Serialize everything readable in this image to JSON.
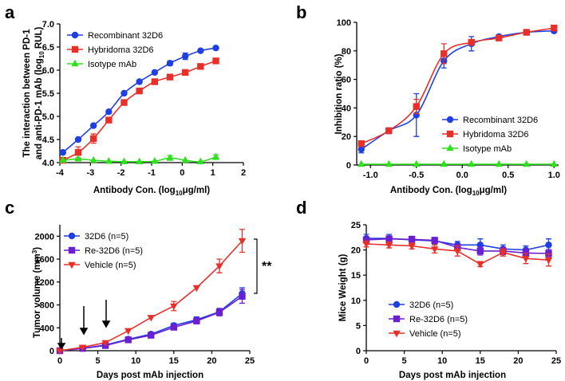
{
  "chart_data": [
    {
      "panel": "a",
      "type": "line",
      "xlabel": "Antibody Con. (log10 μg/ml)",
      "ylabel": "The interaction between PD-1 and anti-PD-1 mAb (log10 RUL)",
      "xlim": [
        -4,
        2
      ],
      "ylim": [
        4.0,
        7.0
      ],
      "xticks": [
        -4,
        -3,
        -2,
        -1,
        0,
        1,
        2
      ],
      "yticks": [
        4.0,
        4.5,
        5.0,
        5.5,
        6.0,
        6.5,
        7.0
      ],
      "ytick_labels": [
        "4.0",
        "4.5",
        "5.0",
        "5.5",
        "6.0",
        "6.5",
        "7.0"
      ],
      "legend_position": "top-left",
      "series": [
        {
          "name": "Recombinant 32D6",
          "color": "#1f3fe0",
          "marker": "circle",
          "x": [
            -3.9,
            -3.4,
            -2.9,
            -2.4,
            -1.9,
            -1.4,
            -0.9,
            -0.4,
            0.1,
            0.6,
            1.1
          ],
          "y": [
            4.22,
            4.5,
            4.8,
            5.1,
            5.5,
            5.75,
            5.95,
            6.15,
            6.3,
            6.42,
            6.48
          ],
          "err": [
            0,
            0,
            0,
            0,
            0,
            0,
            0,
            0.05,
            0.07,
            0,
            0
          ]
        },
        {
          "name": "Hybridoma 32D6",
          "color": "#e8302a",
          "marker": "square",
          "x": [
            -3.9,
            -3.4,
            -2.9,
            -2.4,
            -1.9,
            -1.4,
            -0.9,
            -0.4,
            0.1,
            0.6,
            1.1
          ],
          "y": [
            4.05,
            4.22,
            4.52,
            4.92,
            5.3,
            5.55,
            5.75,
            5.85,
            5.95,
            6.08,
            6.2
          ],
          "err": [
            0,
            0.12,
            0.1,
            0,
            0.05,
            0,
            0,
            0,
            0,
            0,
            0
          ]
        },
        {
          "name": "Isotype mAb",
          "color": "#2fe01f",
          "marker": "triangle",
          "x": [
            -3.9,
            -3.4,
            -2.9,
            -2.4,
            -1.9,
            -1.4,
            -0.9,
            -0.4,
            0.1,
            0.6,
            1.1
          ],
          "y": [
            4.05,
            4.08,
            4.05,
            4.03,
            4.02,
            4.02,
            4.03,
            4.1,
            4.05,
            4.02,
            4.12
          ],
          "err": [
            0,
            0,
            0,
            0,
            0,
            0,
            0,
            0.05,
            0,
            0,
            0.05
          ]
        }
      ]
    },
    {
      "panel": "b",
      "type": "line",
      "xlabel": "Antibody Con. (log10 μg/ml)",
      "ylabel": "Inhibition ratio (%)",
      "xlim": [
        -1.15,
        1.05
      ],
      "ylim": [
        0,
        100
      ],
      "xticks": [
        -1.0,
        -0.5,
        0.0,
        0.5,
        1.0
      ],
      "xtick_labels": [
        "-1.0",
        "-0.5",
        "0.0",
        "0.5",
        "1.0"
      ],
      "yticks": [
        0,
        20,
        40,
        60,
        80,
        100
      ],
      "legend_position": "bottom-right",
      "series": [
        {
          "name": "Recombinant 32D6",
          "color": "#1f3fe0",
          "marker": "circle",
          "x": [
            -1.1,
            -0.8,
            -0.5,
            -0.2,
            0.1,
            0.4,
            0.7,
            1.0
          ],
          "y": [
            11,
            24,
            35,
            73,
            85,
            90,
            93,
            94
          ],
          "err": [
            2.5,
            2,
            15,
            5,
            5,
            0,
            0,
            0
          ]
        },
        {
          "name": "Hybridoma 32D6",
          "color": "#e8302a",
          "marker": "square",
          "x": [
            -1.1,
            -0.8,
            -0.5,
            -0.2,
            0.1,
            0.4,
            0.7,
            1.0
          ],
          "y": [
            15,
            24,
            41,
            78,
            86,
            89,
            93,
            96
          ],
          "err": [
            0,
            0,
            5,
            7,
            0,
            0,
            0,
            0
          ]
        },
        {
          "name": "Isotype mAb",
          "color": "#2fe01f",
          "marker": "triangle",
          "x": [
            -1.1,
            -0.8,
            -0.5,
            -0.2,
            0.1,
            0.4,
            0.7,
            1.0
          ],
          "y": [
            0.5,
            0.5,
            0.5,
            0.5,
            0.5,
            0.5,
            0.5,
            0.5
          ],
          "err": [
            0,
            0,
            0,
            0,
            0,
            0,
            0,
            0
          ]
        }
      ]
    },
    {
      "panel": "c",
      "type": "line",
      "xlabel": "Days post mAb injection",
      "ylabel": "Tumor volume (mm3)",
      "xlim": [
        0,
        25
      ],
      "ylim": [
        0,
        2200
      ],
      "xticks": [
        0,
        5,
        10,
        15,
        20,
        25
      ],
      "yticks": [
        0,
        400,
        800,
        1200,
        1600,
        2000
      ],
      "legend_position": "top-left",
      "injection_days": [
        0,
        3,
        6
      ],
      "significance": "**",
      "series": [
        {
          "name": "32D6 (n=5)",
          "color": "#1f3fe0",
          "marker": "circle",
          "x": [
            0,
            3,
            6,
            9,
            12,
            15,
            18,
            21,
            24
          ],
          "y": [
            0,
            40,
            100,
            200,
            290,
            440,
            540,
            680,
            1000
          ],
          "err": [
            0,
            0,
            0,
            0,
            0,
            40,
            50,
            60,
            100
          ]
        },
        {
          "name": "Re-32D6 (n=5)",
          "color": "#6a1fd0",
          "marker": "square",
          "x": [
            0,
            3,
            6,
            9,
            12,
            15,
            18,
            21,
            24
          ],
          "y": [
            0,
            40,
            90,
            190,
            270,
            410,
            520,
            670,
            950
          ],
          "err": [
            0,
            0,
            0,
            0,
            0,
            30,
            50,
            60,
            120
          ]
        },
        {
          "name": "Vehicle (n=5)",
          "color": "#e8302a",
          "marker": "triangle-down",
          "x": [
            0,
            3,
            6,
            9,
            12,
            15,
            18,
            21,
            24
          ],
          "y": [
            0,
            60,
            140,
            350,
            580,
            780,
            1100,
            1480,
            1920
          ],
          "err": [
            0,
            0,
            0,
            0,
            0,
            80,
            0,
            120,
            200
          ]
        }
      ]
    },
    {
      "panel": "d",
      "type": "line",
      "xlabel": "Days post mAb injection",
      "ylabel": "Mice Weight (g)",
      "xlim": [
        0,
        25
      ],
      "ylim": [
        0,
        25
      ],
      "xticks": [
        0,
        5,
        10,
        15,
        20,
        25
      ],
      "yticks": [
        0,
        5,
        10,
        15,
        20,
        25
      ],
      "legend_position": "bottom-center",
      "series": [
        {
          "name": "32D6 (n=5)",
          "color": "#1f3fe0",
          "marker": "circle",
          "x": [
            0,
            3,
            6,
            9,
            12,
            15,
            18,
            21,
            24
          ],
          "y": [
            22.3,
            22.3,
            22,
            21.8,
            21,
            21,
            20.2,
            20,
            21
          ],
          "err": [
            0.8,
            0.8,
            0.7,
            0.6,
            0.7,
            1.2,
            0.8,
            0.8,
            1.2
          ]
        },
        {
          "name": "Re-32D6 (n=5)",
          "color": "#6a1fd0",
          "marker": "square",
          "x": [
            0,
            3,
            6,
            9,
            12,
            15,
            18,
            21,
            24
          ],
          "y": [
            22,
            22.2,
            22.1,
            21.9,
            20.5,
            19.8,
            19.8,
            19.4,
            19.3
          ],
          "err": [
            0.6,
            0.6,
            0.6,
            0.6,
            0.6,
            0.8,
            0.7,
            0.8,
            0.8
          ]
        },
        {
          "name": "Vehicle (n=5)",
          "color": "#e8302a",
          "marker": "triangle-down",
          "x": [
            0,
            3,
            6,
            9,
            12,
            15,
            18,
            21,
            24
          ],
          "y": [
            21.2,
            21,
            20.8,
            20.2,
            19.8,
            17.2,
            19.5,
            18.3,
            18
          ],
          "err": [
            0.6,
            0.6,
            0.6,
            0.8,
            1,
            0.5,
            0.7,
            1,
            1.2
          ]
        }
      ]
    }
  ]
}
